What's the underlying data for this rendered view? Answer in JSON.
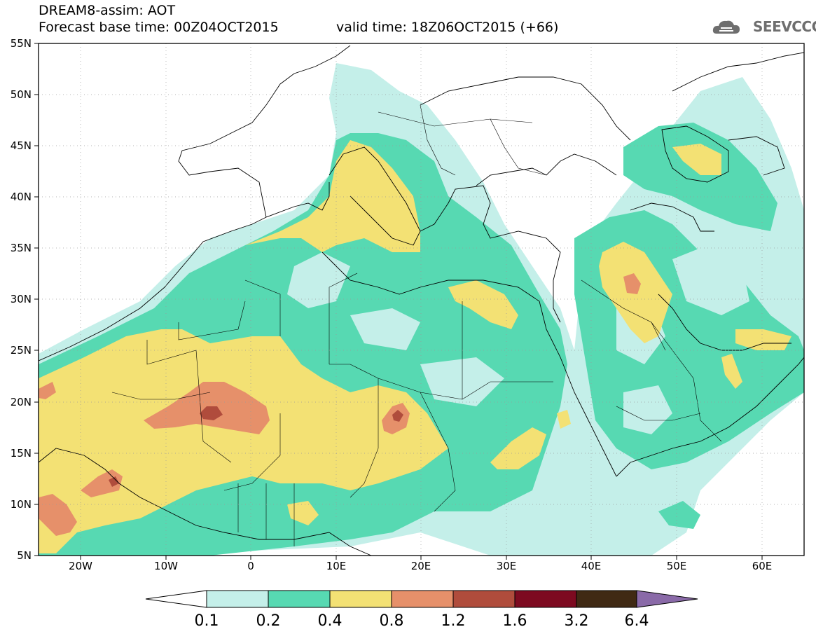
{
  "header": {
    "title": "DREAM8-assim: AOT",
    "base_time": "Forecast base time: 00Z04OCT2015",
    "valid_time": "valid time: 18Z06OCT2015 (+66)"
  },
  "logo": {
    "text": "SEEVCCC",
    "icon": "cloud-icon"
  },
  "map": {
    "lat_labels": [
      "55N",
      "50N",
      "45N",
      "40N",
      "35N",
      "30N",
      "25N",
      "20N",
      "15N",
      "10N",
      "5N"
    ],
    "lon_labels": [
      "20W",
      "10W",
      "0",
      "10E",
      "20E",
      "30E",
      "40E",
      "50E",
      "60E"
    ],
    "extent": {
      "lon_min": -25,
      "lon_max": 65,
      "lat_min": 5,
      "lat_max": 55
    }
  },
  "colorbar": {
    "labels": [
      "0.1",
      "0.2",
      "0.4",
      "0.8",
      "1.2",
      "1.6",
      "3.2",
      "6.4"
    ],
    "colors": [
      "#ffffff",
      "#c4efe9",
      "#57d9b2",
      "#f3e174",
      "#e6906a",
      "#b04c3c",
      "#7d0a20",
      "#402a14",
      "#8a6aa8"
    ]
  }
}
